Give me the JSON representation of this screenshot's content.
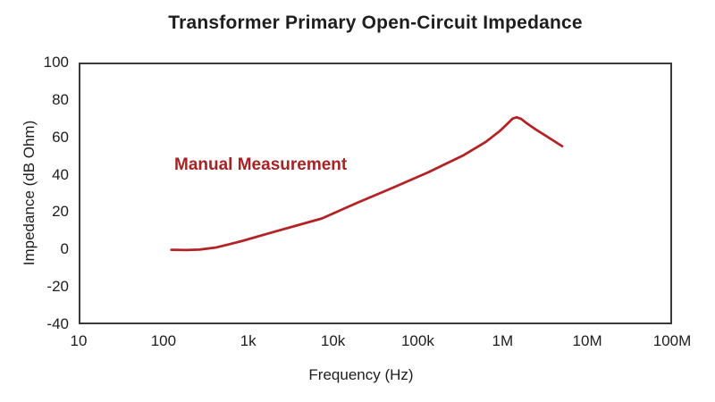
{
  "chart_data": {
    "type": "line",
    "title": "Transformer Primary Open-Circuit Impedance",
    "xlabel": "Frequency (Hz)",
    "ylabel": "Impedance (dB Ohm)",
    "x_scale": "log",
    "xlim": [
      10,
      100000000
    ],
    "ylim": [
      -40,
      100
    ],
    "grid": false,
    "framed_plot_area": true,
    "legend_position": "none",
    "x_ticks": [
      10,
      100,
      1000,
      10000,
      100000,
      1000000,
      10000000,
      100000000
    ],
    "x_tick_labels": [
      "10",
      "100",
      "1k",
      "10k",
      "100k",
      "1M",
      "10M",
      "100M"
    ],
    "y_ticks": [
      100,
      80,
      60,
      40,
      20,
      0,
      -20,
      -40
    ],
    "y_tick_labels": [
      "100",
      "80",
      "60",
      "40",
      "20",
      "0",
      "-20",
      "-40"
    ],
    "series": [
      {
        "name": "Manual Measurement",
        "line_color": "#B22326",
        "label_color": "#A52323",
        "label_position": "above-curve-left",
        "points": [
          [
            120,
            -0.6
          ],
          [
            180,
            -0.7
          ],
          [
            260,
            -0.5
          ],
          [
            400,
            0.6
          ],
          [
            590,
            2.5
          ],
          [
            830,
            4.2
          ],
          [
            1700,
            8.3
          ],
          [
            3500,
            12.3
          ],
          [
            7300,
            16.4
          ],
          [
            19000,
            24.8
          ],
          [
            51000,
            33.1
          ],
          [
            135000,
            41.5
          ],
          [
            355000,
            50.8
          ],
          [
            650000,
            58.0
          ],
          [
            940000,
            63.7
          ],
          [
            1150000,
            67.5
          ],
          [
            1350000,
            70.6
          ],
          [
            1500000,
            71.3
          ],
          [
            1700000,
            70.4
          ],
          [
            2000000,
            67.9
          ],
          [
            2550000,
            64.6
          ],
          [
            3700000,
            59.9
          ],
          [
            5200000,
            55.6
          ]
        ]
      }
    ],
    "colors": {
      "frame": "#3a3a3a",
      "text": "#1d1d1d",
      "background": "#ffffff"
    }
  }
}
